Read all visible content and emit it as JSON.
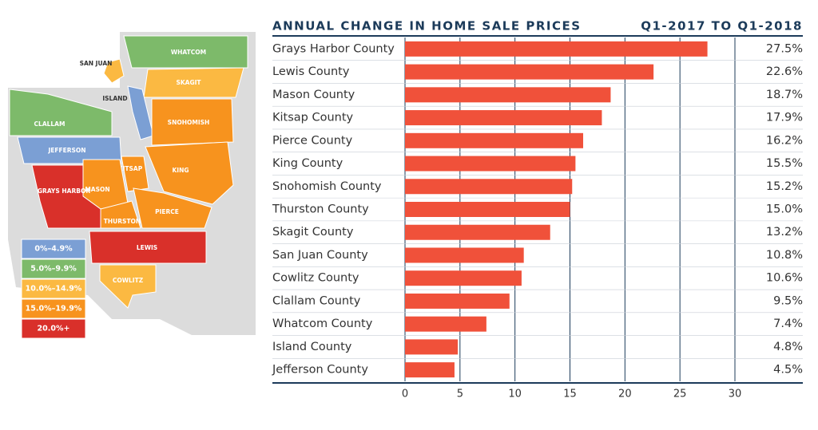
{
  "chart_data": {
    "type": "barh",
    "title": "ANNUAL CHANGE IN HOME SALE PRICES",
    "subtitle": "Q1-2017 TO Q1-2018",
    "categories": [
      "Grays Harbor County",
      "Lewis County",
      "Mason County",
      "Kitsap County",
      "Pierce County",
      "King County",
      "Snohomish County",
      "Thurston County",
      "Skagit County",
      "San Juan County",
      "Cowlitz County",
      "Clallam County",
      "Whatcom County",
      "Island County",
      "Jefferson County"
    ],
    "values": [
      27.5,
      22.6,
      18.7,
      17.9,
      16.2,
      15.5,
      15.2,
      15.0,
      13.2,
      10.8,
      10.6,
      9.5,
      7.4,
      4.8,
      4.5
    ],
    "value_labels": [
      "27.5%",
      "22.6%",
      "18.7%",
      "17.9%",
      "16.2%",
      "15.5%",
      "15.2%",
      "15.0%",
      "13.2%",
      "10.8%",
      "10.6%",
      "9.5%",
      "7.4%",
      "4.8%",
      "4.5%"
    ],
    "color": "#f0513a",
    "xlim": [
      0,
      30
    ],
    "xticks": [
      0,
      5,
      10,
      15,
      20,
      25,
      30
    ],
    "grid": true
  },
  "map": {
    "regions": [
      {
        "label": "WHATCOM",
        "color": "#7dba6a"
      },
      {
        "label": "SKAGIT",
        "color": "#fbb942"
      },
      {
        "label": "SAN JUAN",
        "color": "#fbb942"
      },
      {
        "label": "ISLAND",
        "color": "#7b9fd4"
      },
      {
        "label": "CLALLAM",
        "color": "#7dba6a"
      },
      {
        "label": "JEFFERSON",
        "color": "#7b9fd4"
      },
      {
        "label": "SNOHOMISH",
        "color": "#f7931e"
      },
      {
        "label": "KING",
        "color": "#f7931e"
      },
      {
        "label": "KITSAP",
        "color": "#f7931e"
      },
      {
        "label": "MASON",
        "color": "#f7931e"
      },
      {
        "label": "GRAYS HARBOR",
        "color": "#d9302a"
      },
      {
        "label": "THURSTON",
        "color": "#f7931e"
      },
      {
        "label": "PIERCE",
        "color": "#f7931e"
      },
      {
        "label": "LEWIS",
        "color": "#d9302a"
      },
      {
        "label": "COWLITZ",
        "color": "#fbb942"
      }
    ],
    "legend": [
      {
        "label": "0%–4.9%",
        "color": "#7b9fd4"
      },
      {
        "label": "5.0%–9.9%",
        "color": "#7dba6a"
      },
      {
        "label": "10.0%–14.9%",
        "color": "#fbb942"
      },
      {
        "label": "15.0%–19.9%",
        "color": "#f7931e"
      },
      {
        "label": "20.0%+",
        "color": "#d9302a"
      }
    ]
  }
}
